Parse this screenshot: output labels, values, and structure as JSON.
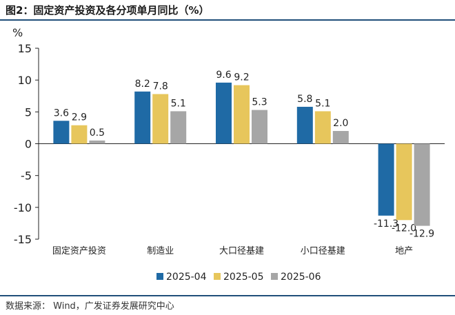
{
  "header": {
    "title": "图2：固定资产投资及各分项单月同比（%）"
  },
  "footer": {
    "source": "数据来源： Wind，广发证券发展研究中心"
  },
  "chart_data": {
    "type": "bar",
    "title": "图2：固定资产投资及各分项单月同比（%）",
    "ylabel": "%",
    "xlabel": "",
    "ylim": [
      -15,
      15
    ],
    "yticks": [
      15,
      10,
      5,
      0,
      -5,
      -10,
      -15
    ],
    "grid": false,
    "legend_position": "bottom",
    "categories": [
      "固定资产投资",
      "制造业",
      "大口径基建",
      "小口径基建",
      "地产"
    ],
    "series": [
      {
        "name": "2025-04",
        "color": "#1f6aa5",
        "values": [
          3.6,
          8.2,
          9.6,
          5.8,
          -11.3
        ],
        "labels": [
          "3.6",
          "8.2",
          "9.6",
          "5.8",
          "-11.3"
        ]
      },
      {
        "name": "2025-05",
        "color": "#e7c65c",
        "values": [
          2.9,
          7.8,
          9.2,
          5.1,
          -12.0
        ],
        "labels": [
          "2.9",
          "7.8",
          "9.2",
          "5.1",
          "-12.0"
        ]
      },
      {
        "name": "2025-06",
        "color": "#a6a6a6",
        "values": [
          0.5,
          5.1,
          5.3,
          2.0,
          -12.9
        ],
        "labels": [
          "0.5",
          "5.1",
          "5.3",
          "2.0",
          "-12.9"
        ]
      }
    ]
  }
}
